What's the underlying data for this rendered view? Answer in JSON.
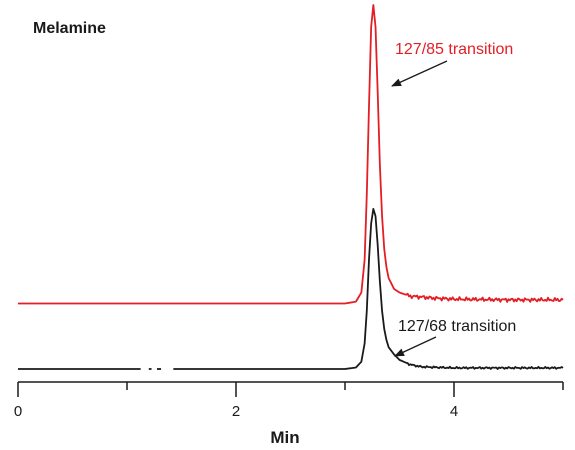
{
  "chart_data": {
    "type": "line",
    "title": "Melamine",
    "xlabel": "Min",
    "ylabel": "",
    "xlim": [
      0,
      5
    ],
    "xticks": [
      {
        "value": 0,
        "label": "0"
      },
      {
        "value": 2,
        "label": "2"
      },
      {
        "value": 4,
        "label": "4"
      }
    ],
    "minor_xticks": [
      1,
      3,
      5
    ],
    "grid": false,
    "y_axis_shown": false,
    "series": [
      {
        "name": "127/85 transition",
        "color": "#e31e24",
        "baseline": 0.18,
        "x": [
          0.0,
          1.0,
          2.0,
          3.0,
          3.1,
          3.15,
          3.18,
          3.2,
          3.22,
          3.24,
          3.26,
          3.28,
          3.3,
          3.32,
          3.34,
          3.36,
          3.38,
          3.4,
          3.45,
          3.5,
          3.55,
          3.6,
          3.7,
          3.8,
          4.0,
          4.5,
          5.0
        ],
        "y": [
          0.18,
          0.18,
          0.18,
          0.18,
          0.185,
          0.21,
          0.3,
          0.48,
          0.72,
          0.94,
          1.0,
          0.94,
          0.76,
          0.56,
          0.42,
          0.33,
          0.28,
          0.25,
          0.22,
          0.21,
          0.205,
          0.2,
          0.198,
          0.195,
          0.192,
          0.19,
          0.19
        ]
      },
      {
        "name": "127/68 transition",
        "color": "#1a1a1a",
        "baseline": 0.0,
        "x": [
          0.0,
          1.1,
          1.3,
          1.45,
          2.0,
          3.0,
          3.1,
          3.15,
          3.18,
          3.2,
          3.22,
          3.24,
          3.26,
          3.28,
          3.3,
          3.32,
          3.34,
          3.36,
          3.38,
          3.4,
          3.45,
          3.5,
          3.6,
          3.7,
          4.0,
          5.0
        ],
        "y": [
          0.0,
          0.0,
          0.0,
          0.0,
          0.0,
          0.0,
          0.004,
          0.02,
          0.07,
          0.16,
          0.3,
          0.4,
          0.44,
          0.42,
          0.34,
          0.24,
          0.16,
          0.11,
          0.08,
          0.06,
          0.04,
          0.025,
          0.012,
          0.006,
          0.003,
          0.003
        ],
        "gaps": [
          [
            1.13,
            1.19
          ],
          [
            1.23,
            1.27
          ],
          [
            1.32,
            1.42
          ]
        ]
      }
    ],
    "annotations": [
      {
        "text": "127/85 transition",
        "color": "#e31e24",
        "points_to_x": 3.38,
        "points_to_y": 0.85
      },
      {
        "text": "127/68 transition",
        "color": "#1a1a1a",
        "points_to_x": 3.42,
        "points_to_y": 0.06
      }
    ]
  }
}
